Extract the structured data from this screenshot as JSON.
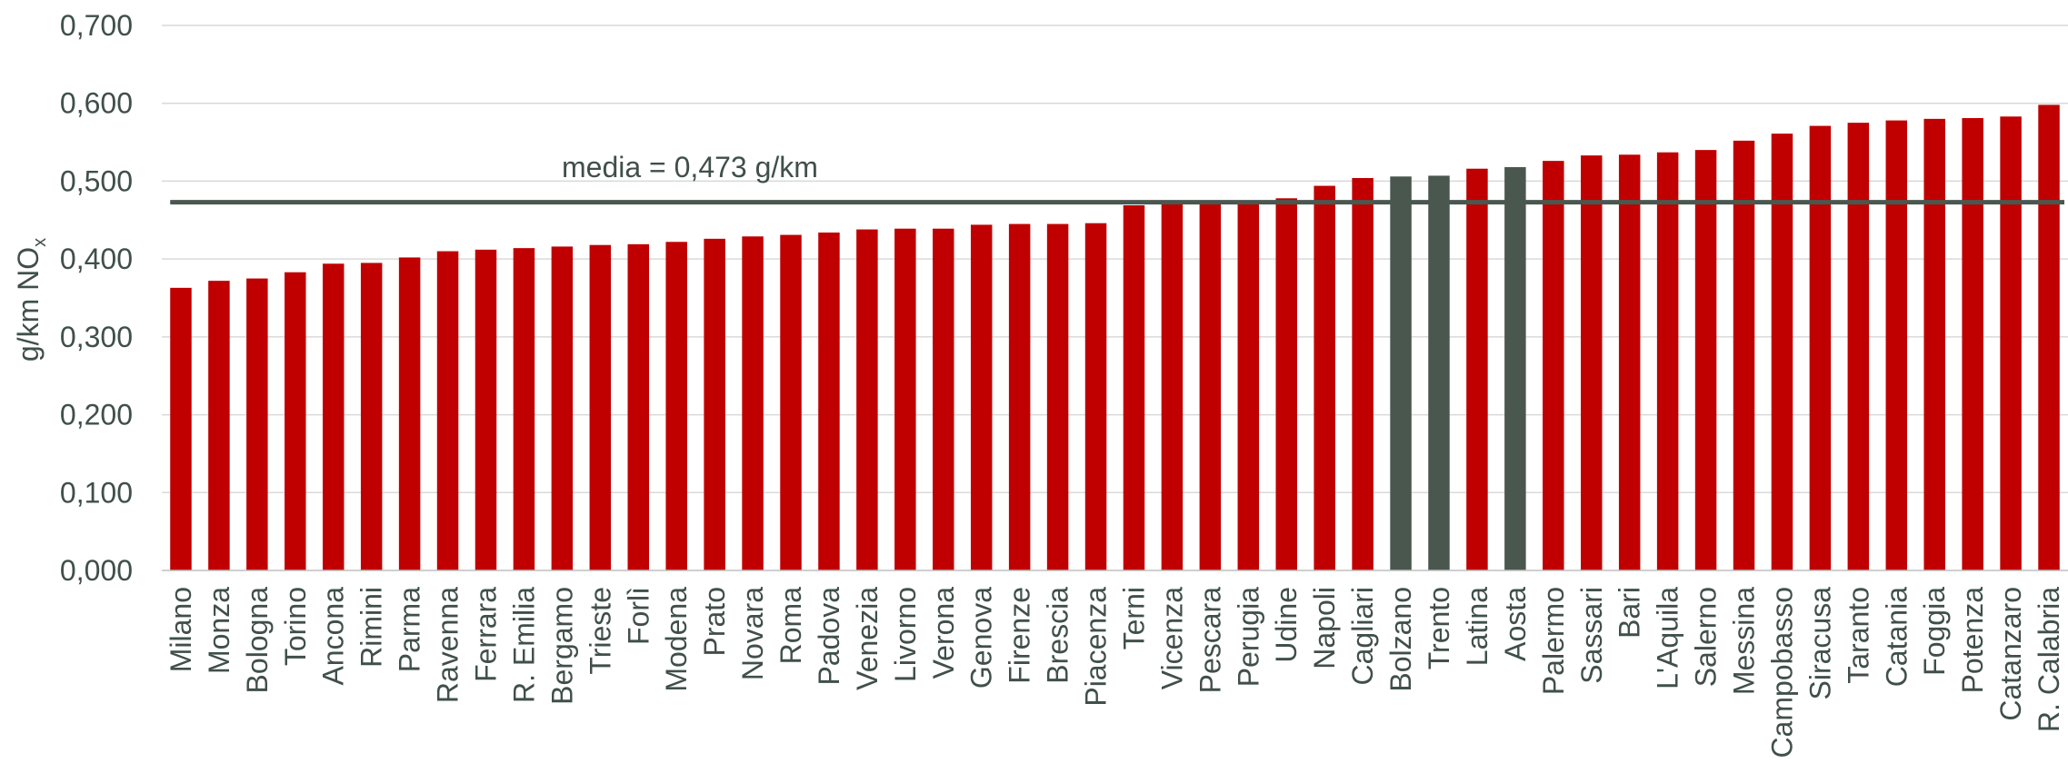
{
  "chart_data": {
    "type": "bar",
    "ylabel": "g/km NO",
    "ylabel_sub": "x",
    "ylim": [
      0,
      0.7
    ],
    "yticks": [
      "0,000",
      "0,100",
      "0,200",
      "0,300",
      "0,400",
      "0,500",
      "0,600",
      "0,700"
    ],
    "ytick_values": [
      0,
      0.1,
      0.2,
      0.3,
      0.4,
      0.5,
      0.6,
      0.7
    ],
    "grid": true,
    "categories": [
      "Milano",
      "Monza",
      "Bologna",
      "Torino",
      "Ancona",
      "Rimini",
      "Parma",
      "Ravenna",
      "Ferrara",
      "R. Emilia",
      "Bergamo",
      "Trieste",
      "Forlì",
      "Modena",
      "Prato",
      "Novara",
      "Roma",
      "Padova",
      "Venezia",
      "Livorno",
      "Verona",
      "Genova",
      "Firenze",
      "Brescia",
      "Piacenza",
      "Terni",
      "Vicenza",
      "Pescara",
      "Perugia",
      "Udine",
      "Napoli",
      "Cagliari",
      "Bolzano",
      "Trento",
      "Latina",
      "Aosta",
      "Palermo",
      "Sassari",
      "Bari",
      "L'Aquila",
      "Salerno",
      "Messina",
      "Campobasso",
      "Siracusa",
      "Taranto",
      "Catania",
      "Foggia",
      "Potenza",
      "Catanzaro",
      "R. Calabria"
    ],
    "values": [
      0.363,
      0.372,
      0.375,
      0.383,
      0.394,
      0.395,
      0.402,
      0.41,
      0.412,
      0.414,
      0.416,
      0.418,
      0.419,
      0.422,
      0.426,
      0.429,
      0.431,
      0.434,
      0.438,
      0.439,
      0.439,
      0.444,
      0.445,
      0.445,
      0.446,
      0.469,
      0.472,
      0.473,
      0.475,
      0.478,
      0.494,
      0.504,
      0.506,
      0.507,
      0.516,
      0.518,
      0.526,
      0.533,
      0.534,
      0.537,
      0.54,
      0.552,
      0.561,
      0.571,
      0.575,
      0.578,
      0.58,
      0.581,
      0.583,
      0.598
    ],
    "highlighted": [
      "Bolzano",
      "Trento",
      "Aosta"
    ],
    "bar_color": "#c00000",
    "highlight_color": "#4a574f",
    "mean": {
      "value": 0.473,
      "label": "media = 0,473 g/km",
      "color": "#4a574f"
    }
  }
}
